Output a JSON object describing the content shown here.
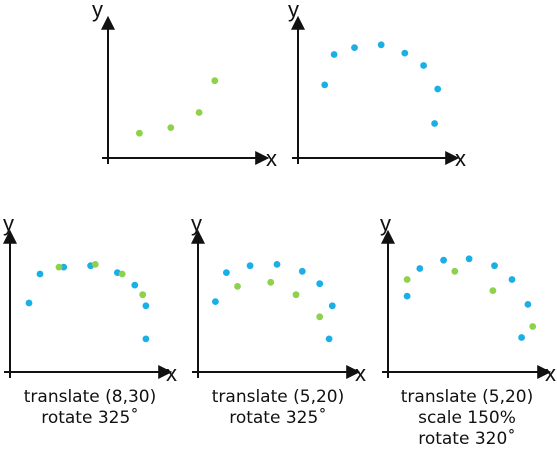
{
  "colors": {
    "blue": "#1ab0e6",
    "green": "#8ed14b",
    "axis": "#111111"
  },
  "panels": [
    {
      "id": "source-green",
      "x_label": "x",
      "y_label": "y",
      "caption": [],
      "points": [
        {
          "x": 0.2,
          "y": 0.18,
          "color": "green"
        },
        {
          "x": 0.4,
          "y": 0.22,
          "color": "green"
        },
        {
          "x": 0.58,
          "y": 0.33,
          "color": "green"
        },
        {
          "x": 0.68,
          "y": 0.56,
          "color": "green"
        }
      ]
    },
    {
      "id": "target-blue",
      "x_label": "x",
      "y_label": "y",
      "caption": [],
      "points": [
        {
          "x": 0.17,
          "y": 0.53,
          "color": "blue"
        },
        {
          "x": 0.23,
          "y": 0.75,
          "color": "blue"
        },
        {
          "x": 0.36,
          "y": 0.8,
          "color": "blue"
        },
        {
          "x": 0.53,
          "y": 0.82,
          "color": "blue"
        },
        {
          "x": 0.68,
          "y": 0.76,
          "color": "blue"
        },
        {
          "x": 0.8,
          "y": 0.67,
          "color": "blue"
        },
        {
          "x": 0.89,
          "y": 0.5,
          "color": "blue"
        },
        {
          "x": 0.87,
          "y": 0.25,
          "color": "blue"
        }
      ]
    },
    {
      "id": "result-1",
      "x_label": "x",
      "y_label": "y",
      "caption": [
        "translate (8,30)",
        "rotate 325˚"
      ],
      "points": [
        {
          "x": 0.12,
          "y": 0.5,
          "color": "blue"
        },
        {
          "x": 0.19,
          "y": 0.71,
          "color": "blue"
        },
        {
          "x": 0.34,
          "y": 0.76,
          "color": "blue"
        },
        {
          "x": 0.51,
          "y": 0.77,
          "color": "blue"
        },
        {
          "x": 0.68,
          "y": 0.72,
          "color": "blue"
        },
        {
          "x": 0.79,
          "y": 0.63,
          "color": "blue"
        },
        {
          "x": 0.86,
          "y": 0.48,
          "color": "blue"
        },
        {
          "x": 0.86,
          "y": 0.24,
          "color": "blue"
        },
        {
          "x": 0.31,
          "y": 0.76,
          "color": "green"
        },
        {
          "x": 0.54,
          "y": 0.78,
          "color": "green"
        },
        {
          "x": 0.71,
          "y": 0.71,
          "color": "green"
        },
        {
          "x": 0.84,
          "y": 0.56,
          "color": "green"
        }
      ]
    },
    {
      "id": "result-2",
      "x_label": "x",
      "y_label": "y",
      "caption": [
        "translate (5,20)",
        "rotate 325˚"
      ],
      "points": [
        {
          "x": 0.11,
          "y": 0.51,
          "color": "blue"
        },
        {
          "x": 0.18,
          "y": 0.72,
          "color": "blue"
        },
        {
          "x": 0.33,
          "y": 0.77,
          "color": "blue"
        },
        {
          "x": 0.5,
          "y": 0.78,
          "color": "blue"
        },
        {
          "x": 0.66,
          "y": 0.73,
          "color": "blue"
        },
        {
          "x": 0.77,
          "y": 0.64,
          "color": "blue"
        },
        {
          "x": 0.85,
          "y": 0.48,
          "color": "blue"
        },
        {
          "x": 0.83,
          "y": 0.24,
          "color": "blue"
        },
        {
          "x": 0.25,
          "y": 0.62,
          "color": "green"
        },
        {
          "x": 0.46,
          "y": 0.65,
          "color": "green"
        },
        {
          "x": 0.62,
          "y": 0.56,
          "color": "green"
        },
        {
          "x": 0.77,
          "y": 0.4,
          "color": "green"
        }
      ]
    },
    {
      "id": "result-3",
      "x_label": "x",
      "y_label": "y",
      "caption": [
        "translate (5,20)",
        "scale 150%",
        "rotate 320˚"
      ],
      "points": [
        {
          "x": 0.12,
          "y": 0.55,
          "color": "blue"
        },
        {
          "x": 0.2,
          "y": 0.75,
          "color": "blue"
        },
        {
          "x": 0.35,
          "y": 0.81,
          "color": "blue"
        },
        {
          "x": 0.51,
          "y": 0.82,
          "color": "blue"
        },
        {
          "x": 0.67,
          "y": 0.77,
          "color": "blue"
        },
        {
          "x": 0.78,
          "y": 0.67,
          "color": "blue"
        },
        {
          "x": 0.88,
          "y": 0.49,
          "color": "blue"
        },
        {
          "x": 0.84,
          "y": 0.25,
          "color": "blue"
        },
        {
          "x": 0.12,
          "y": 0.67,
          "color": "green"
        },
        {
          "x": 0.42,
          "y": 0.73,
          "color": "green"
        },
        {
          "x": 0.66,
          "y": 0.59,
          "color": "green"
        },
        {
          "x": 0.91,
          "y": 0.33,
          "color": "green"
        }
      ]
    }
  ]
}
